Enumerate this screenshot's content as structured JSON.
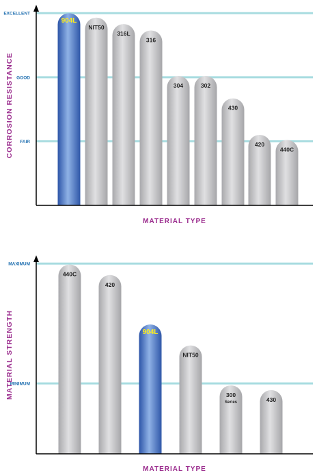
{
  "chart_data": [
    {
      "type": "bar",
      "ylabel": "CORROSION RESISTANCE",
      "xlabel": "MATERIAL TYPE",
      "y_levels": [
        {
          "label": "EXCELLENT",
          "value": 3
        },
        {
          "label": "GOOD",
          "value": 2
        },
        {
          "label": "FAIR",
          "value": 1
        }
      ],
      "ylim": [
        0,
        3.12
      ],
      "highlight_color": "#3f6fc4",
      "bar_color": "#c4c4c6",
      "line_color": "#a8dce0",
      "bars": [
        {
          "label": "904L",
          "value": 3.0,
          "highlight": true
        },
        {
          "label": "NIT50",
          "value": 2.93
        },
        {
          "label": "316L",
          "value": 2.83
        },
        {
          "label": "316",
          "value": 2.73
        },
        {
          "label": "304",
          "value": 2.02
        },
        {
          "label": "302",
          "value": 2.02
        },
        {
          "label": "430",
          "value": 1.67
        },
        {
          "label": "420",
          "value": 1.1
        },
        {
          "label": "440C",
          "value": 1.02
        }
      ]
    },
    {
      "type": "bar",
      "ylabel": "MATERIAL STRENGTH",
      "xlabel": "MATERIAL TYPE",
      "y_levels": [
        {
          "label": "MAXIMUM",
          "value": 1
        },
        {
          "label": "MINIMUM",
          "value": 0.37
        }
      ],
      "ylim": [
        0,
        1.04
      ],
      "highlight_color": "#3f6fc4",
      "bar_color": "#c4c4c6",
      "line_color": "#a8dce0",
      "bars": [
        {
          "label": "440C",
          "value": 0.995
        },
        {
          "label": "420",
          "value": 0.94
        },
        {
          "label": "904L",
          "value": 0.68,
          "highlight": true
        },
        {
          "label": "NIT50",
          "value": 0.57
        },
        {
          "label": "300",
          "sublabel": "Series",
          "value": 0.36
        },
        {
          "label": "430",
          "value": 0.335
        }
      ]
    }
  ]
}
